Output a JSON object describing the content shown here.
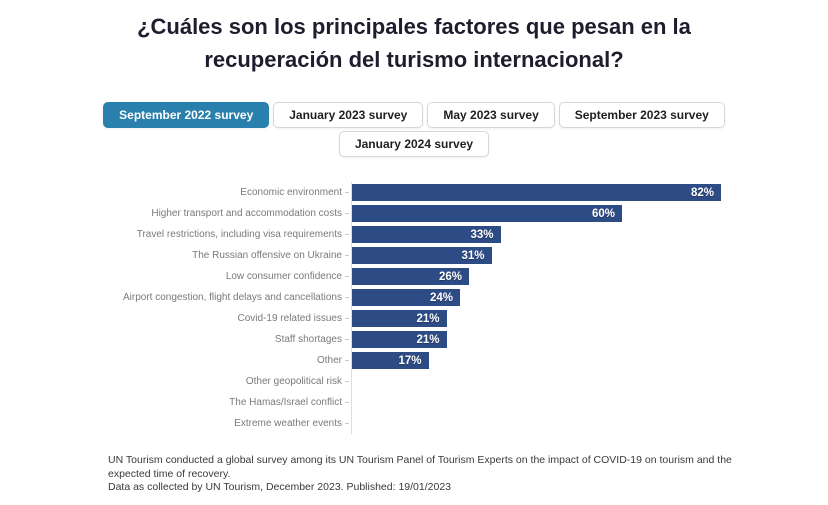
{
  "title_lines": [
    "¿Cuáles son los principales factores que pesan en la",
    "recuperación del turismo internacional?"
  ],
  "tabs": [
    {
      "label": "September 2022 survey",
      "active": true
    },
    {
      "label": "January 2023 survey",
      "active": false
    },
    {
      "label": "May 2023 survey",
      "active": false
    },
    {
      "label": "September 2023 survey",
      "active": false
    },
    {
      "label": "January 2024 survey",
      "active": false
    }
  ],
  "chart_data": {
    "type": "bar",
    "orientation": "horizontal",
    "title": "¿Cuáles son los principales factores que pesan en la recuperación del turismo internacional?",
    "selected_series": "September 2022 survey",
    "categories": [
      "Economic environment",
      "Higher transport and accommodation costs",
      "Travel restrictions, including visa requirements",
      "The Russian offensive on Ukraine",
      "Low consumer confidence",
      "Airport congestion, flight delays and cancellations",
      "Covid-19 related issues",
      "Staff shortages",
      "Other",
      "Other geopolitical risk",
      "The Hamas/Israel conflict",
      "Extreme weather events"
    ],
    "values": [
      82,
      60,
      33,
      31,
      26,
      24,
      21,
      21,
      17,
      0,
      0,
      0
    ],
    "value_labels": [
      "82%",
      "60%",
      "33%",
      "31%",
      "26%",
      "24%",
      "21%",
      "21%",
      "17%",
      "",
      "",
      ""
    ],
    "xlabel": "",
    "ylabel": "",
    "xlim": [
      0,
      100
    ],
    "grid": false,
    "legend": "none",
    "bar_color": "#2d4b85"
  },
  "footer": {
    "lines": [
      "UN Tourism conducted a global survey among its UN Tourism Panel of Tourism Experts on the impact of COVID-19 on tourism and the",
      "expected time of recovery.",
      "Data as collected by UN Tourism, December 2023. Published: 19/01/2023"
    ]
  },
  "colors": {
    "active_tab_bg": "#2a80ad",
    "active_tab_text": "#ffffff",
    "bar": "#2d4b85",
    "bar_value_text": "#ffffff",
    "category_label": "#7a7a7a",
    "title_text": "#1d1d2e",
    "footer_text": "#3a3a3a"
  }
}
